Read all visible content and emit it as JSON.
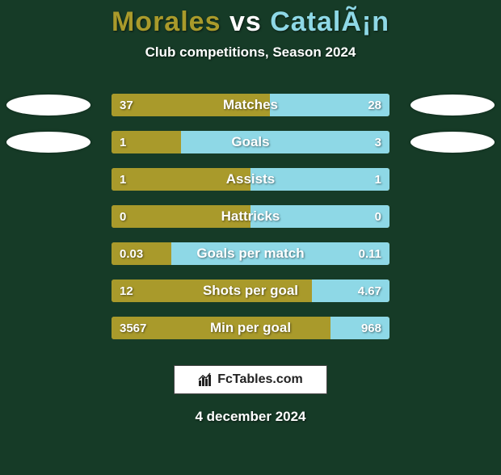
{
  "background_color": "#163b27",
  "title": {
    "left_name": "Morales",
    "vs": "vs",
    "right_name": "CatalÃ¡n",
    "left_color": "#a99a2b",
    "right_color": "#8ed8e6",
    "fontsize": 34
  },
  "subtitle": "Club competitions, Season 2024",
  "track_color": "#a99a2b",
  "left_bar_color": "#a99a2b",
  "right_bar_color": "#8ed8e6",
  "label_color": "#ffffff",
  "value_color": "#ffffff",
  "stats": [
    {
      "label": "Matches",
      "left_val": "37",
      "right_val": "28",
      "left_pct": 56.9,
      "right_pct": 43.1,
      "show_ovals": true
    },
    {
      "label": "Goals",
      "left_val": "1",
      "right_val": "3",
      "left_pct": 25.0,
      "right_pct": 75.0,
      "show_ovals": true
    },
    {
      "label": "Assists",
      "left_val": "1",
      "right_val": "1",
      "left_pct": 50.0,
      "right_pct": 50.0,
      "show_ovals": false
    },
    {
      "label": "Hattricks",
      "left_val": "0",
      "right_val": "0",
      "left_pct": 50.0,
      "right_pct": 50.0,
      "show_ovals": false
    },
    {
      "label": "Goals per match",
      "left_val": "0.03",
      "right_val": "0.11",
      "left_pct": 21.4,
      "right_pct": 78.6,
      "show_ovals": false
    },
    {
      "label": "Shots per goal",
      "left_val": "12",
      "right_val": "4.67",
      "left_pct": 72.0,
      "right_pct": 28.0,
      "show_ovals": false
    },
    {
      "label": "Min per goal",
      "left_val": "3567",
      "right_val": "968",
      "left_pct": 78.7,
      "right_pct": 21.3,
      "show_ovals": false
    }
  ],
  "branding": "FcTables.com",
  "date": "4 december 2024"
}
